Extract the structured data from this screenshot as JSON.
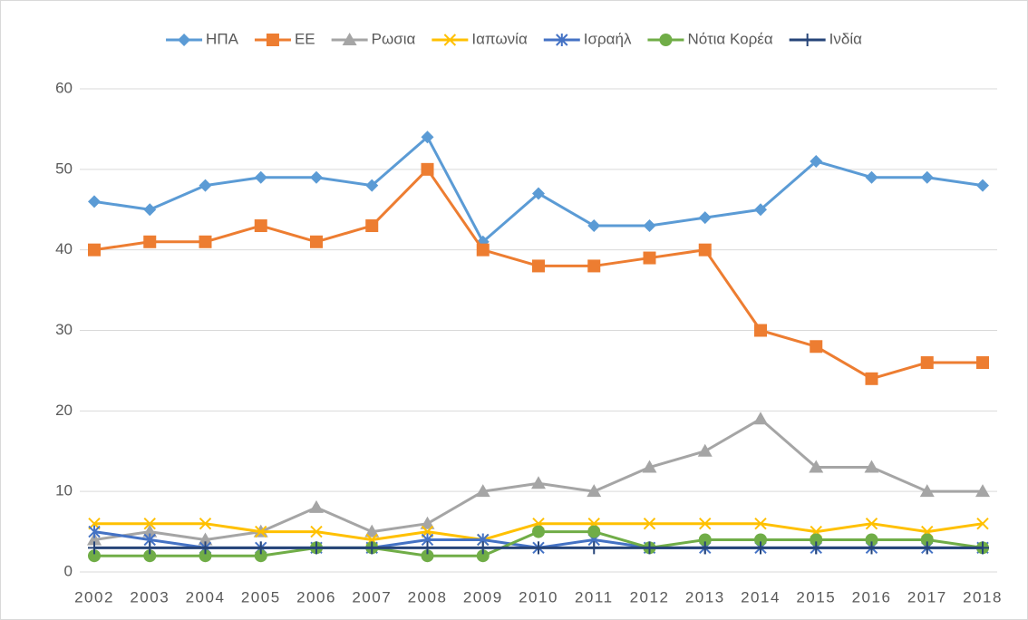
{
  "chart_data": {
    "type": "line",
    "categories": [
      "2002",
      "2003",
      "2004",
      "2005",
      "2006",
      "2007",
      "2008",
      "2009",
      "2010",
      "2011",
      "2012",
      "2013",
      "2014",
      "2015",
      "2016",
      "2017",
      "2018"
    ],
    "series": [
      {
        "name": "ΗΠΑ",
        "color": "#5b9bd5",
        "marker": "diamond",
        "values": [
          46,
          45,
          48,
          49,
          49,
          48,
          54,
          41,
          47,
          43,
          43,
          44,
          45,
          51,
          49,
          49,
          48
        ]
      },
      {
        "name": "ΕΕ",
        "color": "#ed7d31",
        "marker": "square",
        "values": [
          40,
          41,
          41,
          43,
          41,
          43,
          50,
          40,
          38,
          38,
          39,
          40,
          30,
          28,
          24,
          26,
          26
        ]
      },
      {
        "name": "Ρωσια",
        "color": "#a5a5a5",
        "marker": "triangle",
        "values": [
          4,
          5,
          4,
          5,
          8,
          5,
          6,
          10,
          11,
          10,
          13,
          15,
          19,
          13,
          13,
          10,
          10
        ]
      },
      {
        "name": "Ιαπωνία",
        "color": "#ffc000",
        "marker": "x",
        "values": [
          6,
          6,
          6,
          5,
          5,
          4,
          5,
          4,
          6,
          6,
          6,
          6,
          6,
          5,
          6,
          5,
          6
        ]
      },
      {
        "name": "Ισραήλ",
        "color": "#4472c4",
        "marker": "asterisk",
        "values": [
          5,
          4,
          3,
          3,
          3,
          3,
          4,
          4,
          3,
          4,
          3,
          3,
          3,
          3,
          3,
          3,
          3
        ]
      },
      {
        "name": "Νότια Κορέα",
        "color": "#70ad47",
        "marker": "circle",
        "values": [
          2,
          2,
          2,
          2,
          3,
          3,
          2,
          2,
          5,
          5,
          3,
          4,
          4,
          4,
          4,
          4,
          3
        ]
      },
      {
        "name": "Ινδία",
        "color": "#264478",
        "marker": "plus",
        "values": [
          3,
          3,
          3,
          3,
          3,
          3,
          3,
          3,
          3,
          3,
          3,
          3,
          3,
          3,
          3,
          3,
          3
        ]
      }
    ],
    "ylim": [
      0,
      60
    ],
    "yticks": [
      0,
      10,
      20,
      30,
      40,
      50,
      60
    ],
    "grid": true,
    "legend": "top"
  }
}
